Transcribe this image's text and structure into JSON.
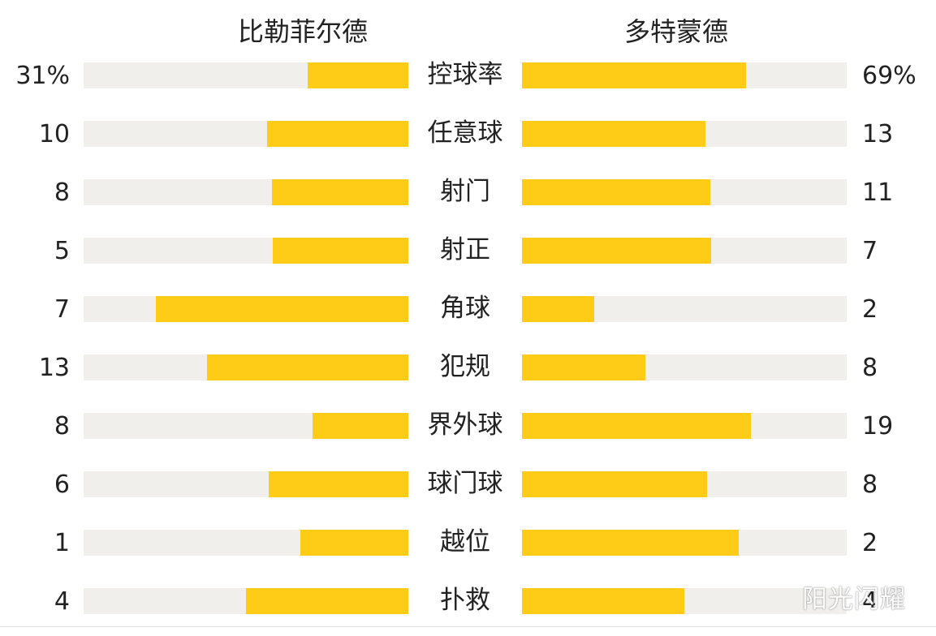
{
  "chart_data": {
    "type": "bar",
    "teams": {
      "left": "比勒菲尔德",
      "right": "多特蒙德"
    },
    "categories": [
      "控球率",
      "任意球",
      "射门",
      "射正",
      "角球",
      "犯规",
      "界外球",
      "球门球",
      "越位",
      "扑救"
    ],
    "series": [
      {
        "name": "比勒菲尔德",
        "labels": [
          "31%",
          "10",
          "8",
          "5",
          "7",
          "13",
          "8",
          "6",
          "1",
          "4"
        ],
        "values": [
          31,
          10,
          8,
          5,
          7,
          13,
          8,
          6,
          1,
          4
        ]
      },
      {
        "name": "多特蒙德",
        "labels": [
          "69%",
          "13",
          "11",
          "7",
          "2",
          "8",
          "19",
          "8",
          "2",
          "4"
        ],
        "values": [
          69,
          13,
          11,
          7,
          2,
          8,
          19,
          8,
          2,
          4
        ]
      }
    ],
    "bar_fraction": {
      "left": [
        0.31,
        0.435,
        0.42,
        0.418,
        0.778,
        0.619,
        0.296,
        0.429,
        0.333,
        0.5
      ],
      "right": [
        0.69,
        0.565,
        0.58,
        0.583,
        0.222,
        0.381,
        0.704,
        0.571,
        0.667,
        0.5
      ]
    },
    "colors": {
      "fill": "#fecb16",
      "track": "#f0efeb"
    }
  },
  "watermark": "阳光闪耀"
}
